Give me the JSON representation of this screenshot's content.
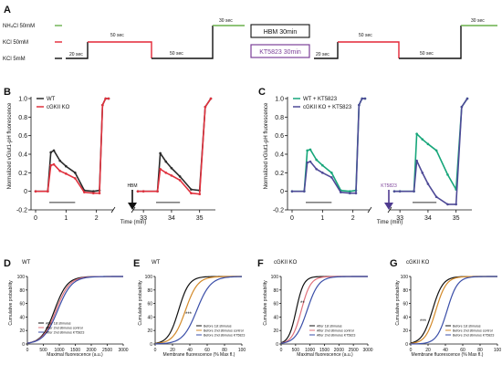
{
  "panel_labels": {
    "A": "A",
    "B": "B",
    "C": "C",
    "D": "D",
    "E": "E",
    "F": "F",
    "G": "G"
  },
  "protocol": {
    "rows": [
      {
        "label": "NH₄Cl 50mM",
        "color": "#6ab04c"
      },
      {
        "label": "KCl 50mM",
        "color": "#e32636"
      },
      {
        "label": "KCl 5mM",
        "color": "#111111"
      }
    ],
    "durations": [
      "20 sec",
      "50 sec",
      "50 sec",
      "30 sec",
      "20 sec",
      "50 sec",
      "50 sec",
      "30 sec"
    ],
    "box_hbm": {
      "label": "HBM 30min",
      "color": "#111111"
    },
    "box_kt": {
      "label": "KT5823 30min",
      "color": "#7b3f98"
    }
  },
  "colors": {
    "wt": "#2a2a2a",
    "ko": "#e0323e",
    "wt_kt": "#17a67a",
    "ko_kt": "#4e4a97",
    "kt_arrow": "#7b3f98",
    "cdf_blue": "#3a4ea8",
    "cdf_pink": "#e0707a",
    "cdf_orange": "#d38a2a"
  },
  "icons": {
    "arrow_hbm": "down-arrow-icon",
    "arrow_kt": "down-arrow-icon"
  },
  "chart_data": [
    {
      "id": "B",
      "type": "line",
      "ylabel": "Normalized vGlut1-pH fluorescence",
      "xlabel": "Time (min)",
      "ylim": [
        -0.2,
        1.0
      ],
      "yticks": [
        "-0.2",
        "0",
        "0.2",
        "0.4",
        "0.6",
        "0.8",
        "1.0"
      ],
      "xticks": [
        "0",
        "1",
        "2",
        "33",
        "34",
        "35"
      ],
      "legend": [
        "WT",
        "cGKII KO"
      ],
      "annotation": "HBM",
      "series": [
        {
          "name": "WT",
          "x": [
            0,
            0.4,
            0.5,
            0.6,
            0.8,
            1.0,
            1.3,
            1.6,
            1.9,
            2.1,
            2.2,
            2.3,
            2.4,
            32.8,
            33.0,
            33.5,
            33.6,
            33.8,
            34.0,
            34.3,
            34.7,
            35.0,
            35.2,
            35.4
          ],
          "y": [
            0,
            0,
            0.42,
            0.44,
            0.33,
            0.27,
            0.2,
            0.01,
            0.0,
            0.01,
            0.93,
            1.0,
            1.0,
            0,
            0,
            0,
            0.41,
            0.32,
            0.25,
            0.16,
            0.02,
            0.01,
            0.91,
            1.0
          ]
        },
        {
          "name": "cGKII KO",
          "x": [
            0,
            0.4,
            0.5,
            0.6,
            0.8,
            1.0,
            1.3,
            1.6,
            1.9,
            2.1,
            2.2,
            2.3,
            2.4,
            32.8,
            33.0,
            33.5,
            33.6,
            33.8,
            34.0,
            34.3,
            34.7,
            35.0,
            35.2,
            35.4
          ],
          "y": [
            0,
            0,
            0.28,
            0.29,
            0.22,
            0.19,
            0.14,
            -0.01,
            -0.02,
            -0.02,
            0.93,
            1.0,
            1.0,
            0,
            0,
            0,
            0.24,
            0.2,
            0.17,
            0.12,
            -0.02,
            -0.03,
            0.91,
            1.0
          ]
        }
      ]
    },
    {
      "id": "C",
      "type": "line",
      "ylabel": "Normalized vGlut1-pH fluorescence",
      "xlabel": "Time (min)",
      "ylim": [
        -0.2,
        1.0
      ],
      "yticks": [
        "-0.2",
        "0",
        "0.2",
        "0.4",
        "0.6",
        "0.8",
        "1.0"
      ],
      "xticks": [
        "0",
        "1",
        "2",
        "33",
        "34",
        "35"
      ],
      "legend": [
        "WT + KT5823",
        "cGKII KO + KT5823"
      ],
      "annotation": "KT5823",
      "series": [
        {
          "name": "WT + KT5823",
          "x": [
            0,
            0.4,
            0.5,
            0.6,
            0.8,
            1.0,
            1.3,
            1.6,
            1.9,
            2.1,
            2.2,
            2.3,
            2.4,
            32.8,
            33.0,
            33.5,
            33.6,
            33.8,
            34.0,
            34.3,
            34.7,
            35.0,
            35.2,
            35.4
          ],
          "y": [
            0,
            0,
            0.44,
            0.45,
            0.34,
            0.28,
            0.2,
            0.01,
            0.0,
            0.01,
            0.93,
            1.0,
            1.0,
            0,
            0,
            0,
            0.62,
            0.56,
            0.51,
            0.44,
            0.18,
            0.02,
            0.91,
            1.0
          ]
        },
        {
          "name": "cGKII KO + KT5823",
          "x": [
            0,
            0.4,
            0.5,
            0.6,
            0.8,
            1.0,
            1.3,
            1.6,
            1.9,
            2.1,
            2.2,
            2.3,
            2.4,
            32.8,
            33.0,
            33.5,
            33.6,
            33.8,
            34.0,
            34.3,
            34.7,
            35.0,
            35.2,
            35.4
          ],
          "y": [
            0,
            0,
            0.31,
            0.32,
            0.24,
            0.2,
            0.15,
            -0.01,
            -0.02,
            -0.02,
            0.93,
            1.0,
            1.0,
            0,
            0,
            0,
            0.33,
            0.2,
            0.08,
            -0.06,
            -0.14,
            -0.14,
            0.91,
            1.0
          ]
        }
      ]
    },
    {
      "id": "D",
      "type": "line",
      "title": "WT",
      "ylabel": "Cumulative probability",
      "xlabel": "Maximal fluorescence (a.u.)",
      "xlim": [
        0,
        3000
      ],
      "ylim": [
        0,
        100
      ],
      "xticks": [
        "0",
        "500",
        "1000",
        "1500",
        "2000",
        "2500",
        "3000"
      ],
      "yticks": [
        "0",
        "20",
        "40",
        "60",
        "80",
        "100"
      ],
      "legend": [
        "After 1st stimulus",
        "After 2nd stimulus control",
        "After 2nd stimulus KT5823"
      ]
    },
    {
      "id": "E",
      "type": "line",
      "title": "WT",
      "ylabel": "Cumulative probability",
      "xlabel": "Membrane fluorescence (% Max fl.)",
      "xlim": [
        0,
        100
      ],
      "ylim": [
        0,
        100
      ],
      "xticks": [
        "0",
        "20",
        "40",
        "60",
        "80",
        "100"
      ],
      "yticks": [
        "0",
        "20",
        "40",
        "60",
        "80",
        "100"
      ],
      "legend": [
        "Before 1st stimulus",
        "Before 2nd stimulus control",
        "Before 2nd stimulus KT5823"
      ],
      "significance": "***"
    },
    {
      "id": "F",
      "type": "line",
      "title": "cGKII KO",
      "ylabel": "Cumulative probability",
      "xlabel": "Maximal fluorescence (a.u.)",
      "xlim": [
        0,
        3000
      ],
      "ylim": [
        0,
        100
      ],
      "xticks": [
        "0",
        "500",
        "1000",
        "1500",
        "2000",
        "2500",
        "3000"
      ],
      "yticks": [
        "0",
        "20",
        "40",
        "60",
        "80",
        "100"
      ],
      "legend": [
        "After 1st stimulus",
        "After 2nd stimulus control",
        "After 2nd stimulus KT5823"
      ],
      "significance": "**"
    },
    {
      "id": "G",
      "type": "line",
      "title": "cGKII KO",
      "ylabel": "Cumulative probability",
      "xlabel": "Membrane fluorescence (% Max fl.)",
      "xlim": [
        0,
        100
      ],
      "ylim": [
        0,
        100
      ],
      "xticks": [
        "0",
        "20",
        "40",
        "60",
        "80",
        "100"
      ],
      "yticks": [
        "0",
        "20",
        "40",
        "60",
        "80",
        "100"
      ],
      "legend": [
        "Before 1st stimulus",
        "Before 2nd stimulus control",
        "Before 2nd stimulus KT5823"
      ],
      "significance": "***"
    }
  ]
}
